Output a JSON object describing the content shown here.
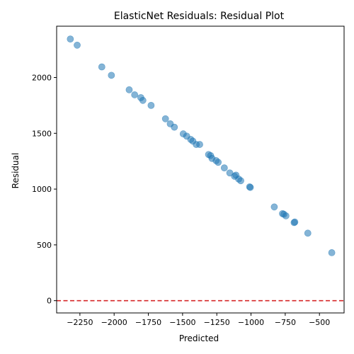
{
  "chart_data": {
    "type": "scatter",
    "title": "ElasticNet Residuals: Residual Plot",
    "xlabel": "Predicted",
    "ylabel": "Residual",
    "xlim": [
      -2420,
      -320
    ],
    "ylim": [
      -110,
      2460
    ],
    "xticks": [
      -2250,
      -2000,
      -1750,
      -1500,
      -1250,
      -1000,
      -750,
      -500
    ],
    "yticks": [
      0,
      500,
      1000,
      1500,
      2000
    ],
    "grid": false,
    "point_color": "#1f77b4",
    "point_alpha": 0.55,
    "reference_line": {
      "y": 0,
      "color": "#d62728",
      "style": "dashed"
    },
    "points": [
      {
        "x": -2320,
        "y": 2345
      },
      {
        "x": -2270,
        "y": 2290
      },
      {
        "x": -2090,
        "y": 2095
      },
      {
        "x": -2020,
        "y": 2020
      },
      {
        "x": -1890,
        "y": 1890
      },
      {
        "x": -1850,
        "y": 1845
      },
      {
        "x": -1805,
        "y": 1820
      },
      {
        "x": -1790,
        "y": 1795
      },
      {
        "x": -1730,
        "y": 1750
      },
      {
        "x": -1625,
        "y": 1630
      },
      {
        "x": -1590,
        "y": 1585
      },
      {
        "x": -1560,
        "y": 1555
      },
      {
        "x": -1495,
        "y": 1495
      },
      {
        "x": -1470,
        "y": 1475
      },
      {
        "x": -1440,
        "y": 1445
      },
      {
        "x": -1425,
        "y": 1430
      },
      {
        "x": -1400,
        "y": 1400
      },
      {
        "x": -1375,
        "y": 1400
      },
      {
        "x": -1310,
        "y": 1310
      },
      {
        "x": -1295,
        "y": 1300
      },
      {
        "x": -1285,
        "y": 1275
      },
      {
        "x": -1255,
        "y": 1255
      },
      {
        "x": -1240,
        "y": 1240
      },
      {
        "x": -1195,
        "y": 1190
      },
      {
        "x": -1155,
        "y": 1145
      },
      {
        "x": -1120,
        "y": 1115
      },
      {
        "x": -1110,
        "y": 1125
      },
      {
        "x": -1090,
        "y": 1090
      },
      {
        "x": -1075,
        "y": 1075
      },
      {
        "x": -1010,
        "y": 1020
      },
      {
        "x": -1005,
        "y": 1015
      },
      {
        "x": -830,
        "y": 840
      },
      {
        "x": -770,
        "y": 780
      },
      {
        "x": -760,
        "y": 775
      },
      {
        "x": -745,
        "y": 760
      },
      {
        "x": -685,
        "y": 700
      },
      {
        "x": -680,
        "y": 705
      },
      {
        "x": -585,
        "y": 605
      },
      {
        "x": -410,
        "y": 430
      }
    ]
  }
}
